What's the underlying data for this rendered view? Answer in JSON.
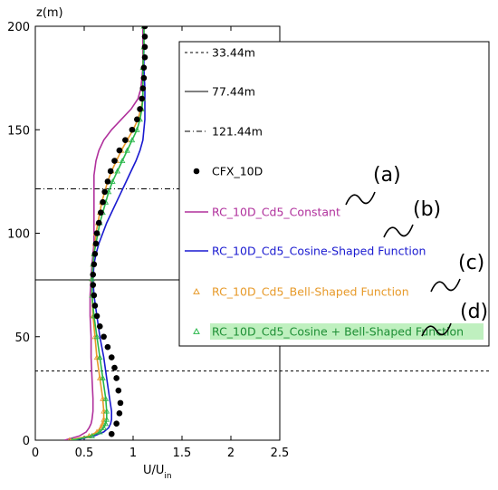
{
  "chart_data": {
    "type": "line",
    "xlabel": "U/U",
    "xlabel_sub": "in",
    "ylabel": "z(m)",
    "xlim": [
      0,
      2.5
    ],
    "ylim": [
      0,
      200
    ],
    "xticks": [
      "0",
      "0.5",
      "1",
      "1.5",
      "2",
      "2.5"
    ],
    "yticks": [
      "0",
      "50",
      "100",
      "150",
      "200"
    ],
    "grid": false,
    "legend_position": "right",
    "reference_lines": [
      {
        "name": "33.44m",
        "z": 33.44,
        "style": "dashed"
      },
      {
        "name": "77.44m",
        "z": 77.44,
        "style": "solid"
      },
      {
        "name": "121.44m",
        "z": 121.44,
        "style": "dash-dot"
      }
    ],
    "series": [
      {
        "name": "CFX_10D",
        "color": "#000000",
        "marker": "filled-circle",
        "z": [
          3,
          8,
          13,
          18,
          24,
          30,
          35,
          40,
          45,
          50,
          55,
          60,
          65,
          70,
          75,
          80,
          85,
          90,
          95,
          100,
          105,
          110,
          115,
          120,
          125,
          130,
          135,
          140,
          145,
          150,
          155,
          160,
          165,
          170,
          175,
          180,
          185,
          190,
          195,
          200
        ],
        "x": [
          0.78,
          0.83,
          0.86,
          0.87,
          0.85,
          0.83,
          0.81,
          0.78,
          0.74,
          0.7,
          0.66,
          0.63,
          0.61,
          0.6,
          0.59,
          0.59,
          0.6,
          0.61,
          0.62,
          0.63,
          0.65,
          0.67,
          0.69,
          0.71,
          0.74,
          0.77,
          0.81,
          0.86,
          0.92,
          0.99,
          1.04,
          1.07,
          1.09,
          1.1,
          1.11,
          1.11,
          1.12,
          1.12,
          1.12,
          1.12
        ]
      },
      {
        "name": "RC_10D_Cd5_Constant",
        "color": "#b0309c",
        "z": [
          0,
          2,
          4,
          6,
          8,
          10,
          14,
          20,
          30,
          40,
          50,
          60,
          70,
          78,
          85,
          90,
          95,
          100,
          110,
          120,
          128,
          135,
          140,
          145,
          150,
          155,
          160,
          165,
          170,
          175,
          180,
          190,
          200
        ],
        "x": [
          0.3,
          0.45,
          0.52,
          0.55,
          0.57,
          0.58,
          0.59,
          0.59,
          0.58,
          0.57,
          0.57,
          0.56,
          0.56,
          0.57,
          0.58,
          0.59,
          0.6,
          0.6,
          0.6,
          0.6,
          0.6,
          0.62,
          0.65,
          0.7,
          0.78,
          0.88,
          0.98,
          1.05,
          1.08,
          1.09,
          1.1,
          1.1,
          1.1
        ]
      },
      {
        "name": "RC_10D_Cd5_Cosine-Shaped Function",
        "color": "#1a1ad0",
        "z": [
          0,
          2,
          4,
          6,
          8,
          10,
          14,
          20,
          30,
          40,
          50,
          60,
          70,
          78,
          85,
          90,
          95,
          100,
          105,
          110,
          115,
          120,
          125,
          130,
          135,
          140,
          145,
          150,
          155,
          160,
          165,
          170,
          180,
          190,
          200
        ],
        "x": [
          0.4,
          0.6,
          0.7,
          0.75,
          0.77,
          0.78,
          0.78,
          0.76,
          0.73,
          0.7,
          0.66,
          0.63,
          0.6,
          0.59,
          0.6,
          0.62,
          0.65,
          0.69,
          0.73,
          0.78,
          0.83,
          0.88,
          0.93,
          0.98,
          1.03,
          1.07,
          1.1,
          1.11,
          1.12,
          1.12,
          1.12,
          1.12,
          1.11,
          1.11,
          1.11
        ]
      },
      {
        "name": "RC_10D_Cd5_Bell-Shaped Function",
        "color": "#e79a2a",
        "marker": "open-triangle",
        "z": [
          0,
          2,
          4,
          6,
          8,
          10,
          14,
          20,
          30,
          40,
          50,
          60,
          70,
          78,
          85,
          90,
          95,
          100,
          105,
          110,
          115,
          120,
          125,
          130,
          135,
          140,
          145,
          150,
          155,
          160,
          165,
          170,
          180,
          190,
          200
        ],
        "x": [
          0.35,
          0.55,
          0.63,
          0.67,
          0.69,
          0.7,
          0.7,
          0.69,
          0.66,
          0.63,
          0.61,
          0.59,
          0.58,
          0.58,
          0.59,
          0.6,
          0.61,
          0.62,
          0.64,
          0.66,
          0.68,
          0.71,
          0.74,
          0.78,
          0.83,
          0.88,
          0.94,
          1.0,
          1.05,
          1.08,
          1.1,
          1.1,
          1.1,
          1.11,
          1.11
        ]
      },
      {
        "name": "RC_10D_Cd5_Cosine + Bell-Shaped Function",
        "color": "#28b84a",
        "marker": "open-triangle",
        "z": [
          0,
          2,
          4,
          6,
          8,
          10,
          14,
          20,
          30,
          40,
          50,
          60,
          70,
          78,
          85,
          90,
          95,
          100,
          105,
          110,
          115,
          120,
          125,
          130,
          135,
          140,
          145,
          150,
          155,
          160,
          165,
          170,
          180,
          190,
          200
        ],
        "x": [
          0.38,
          0.58,
          0.66,
          0.7,
          0.72,
          0.73,
          0.73,
          0.72,
          0.69,
          0.66,
          0.63,
          0.6,
          0.58,
          0.58,
          0.59,
          0.6,
          0.62,
          0.64,
          0.66,
          0.69,
          0.72,
          0.75,
          0.79,
          0.84,
          0.89,
          0.94,
          0.99,
          1.04,
          1.07,
          1.09,
          1.1,
          1.1,
          1.1,
          1.11,
          1.11
        ]
      }
    ],
    "annotations": [
      "(a)",
      "(b)",
      "(c)",
      "(d)"
    ]
  }
}
